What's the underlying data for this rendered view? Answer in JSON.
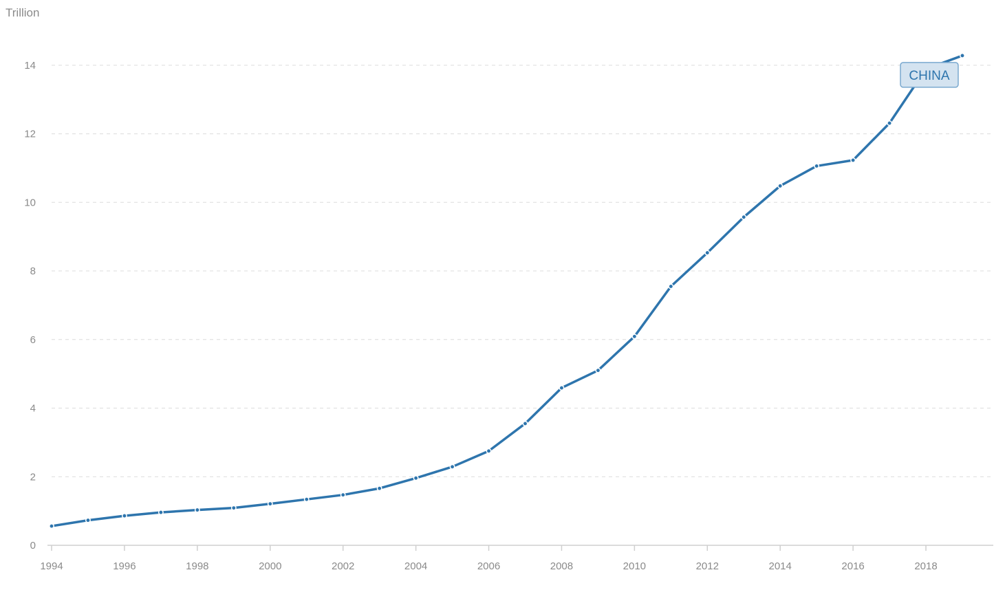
{
  "chart_data": {
    "type": "line",
    "ylabel": "Trillion",
    "x": [
      1994,
      1995,
      1996,
      1997,
      1998,
      1999,
      2000,
      2001,
      2002,
      2003,
      2004,
      2005,
      2006,
      2007,
      2008,
      2009,
      2010,
      2011,
      2012,
      2013,
      2014,
      2015,
      2016,
      2017,
      2018,
      2019
    ],
    "xticks": [
      "1994",
      "1996",
      "1998",
      "2000",
      "2002",
      "2004",
      "2006",
      "2008",
      "2010",
      "2012",
      "2014",
      "2016",
      "2018"
    ],
    "xlim": [
      1994,
      2019.85
    ],
    "yticks": [
      "0",
      "2",
      "4",
      "6",
      "8",
      "10",
      "12",
      "14"
    ],
    "ylim": [
      0,
      15.3
    ],
    "grid": true,
    "series": [
      {
        "name": "CHINA",
        "color": "#2e75ad",
        "label_fill": "#d4e3f0",
        "label_border": "#7aa9cf",
        "values": [
          0.56,
          0.73,
          0.86,
          0.96,
          1.03,
          1.09,
          1.21,
          1.34,
          1.47,
          1.66,
          1.96,
          2.29,
          2.75,
          3.55,
          4.59,
          5.1,
          6.09,
          7.55,
          8.53,
          9.57,
          10.48,
          11.06,
          11.23,
          12.31,
          13.89,
          14.28
        ]
      }
    ]
  }
}
